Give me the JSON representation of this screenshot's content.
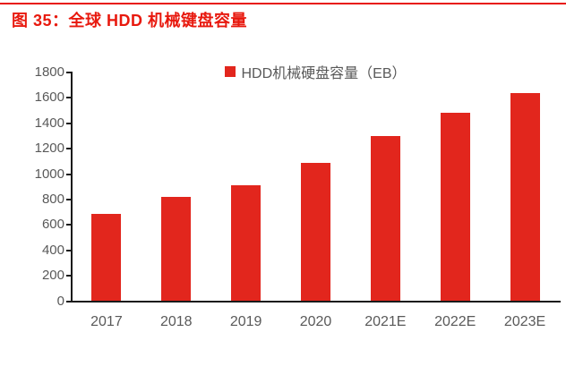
{
  "page": {
    "title": "图 35：全球 HDD 机械键盘容量"
  },
  "colors": {
    "title_red": "#e8190e",
    "bar_red": "#e2261d",
    "axis_text": "#595959",
    "axis_line": "#1a1a1a"
  },
  "chart_data": {
    "type": "bar",
    "title": "图 35：全球 HDD 机械键盘容量",
    "legend": [
      "HDD机械硬盘容量（EB）"
    ],
    "categories": [
      "2017",
      "2018",
      "2019",
      "2020",
      "2021E",
      "2022E",
      "2023E"
    ],
    "values": [
      690,
      820,
      910,
      1090,
      1300,
      1480,
      1640
    ],
    "xlabel": "",
    "ylabel": "",
    "ylim": [
      0,
      1800
    ],
    "ytick_step": 200,
    "grid": false,
    "legend_position": "top-center"
  }
}
